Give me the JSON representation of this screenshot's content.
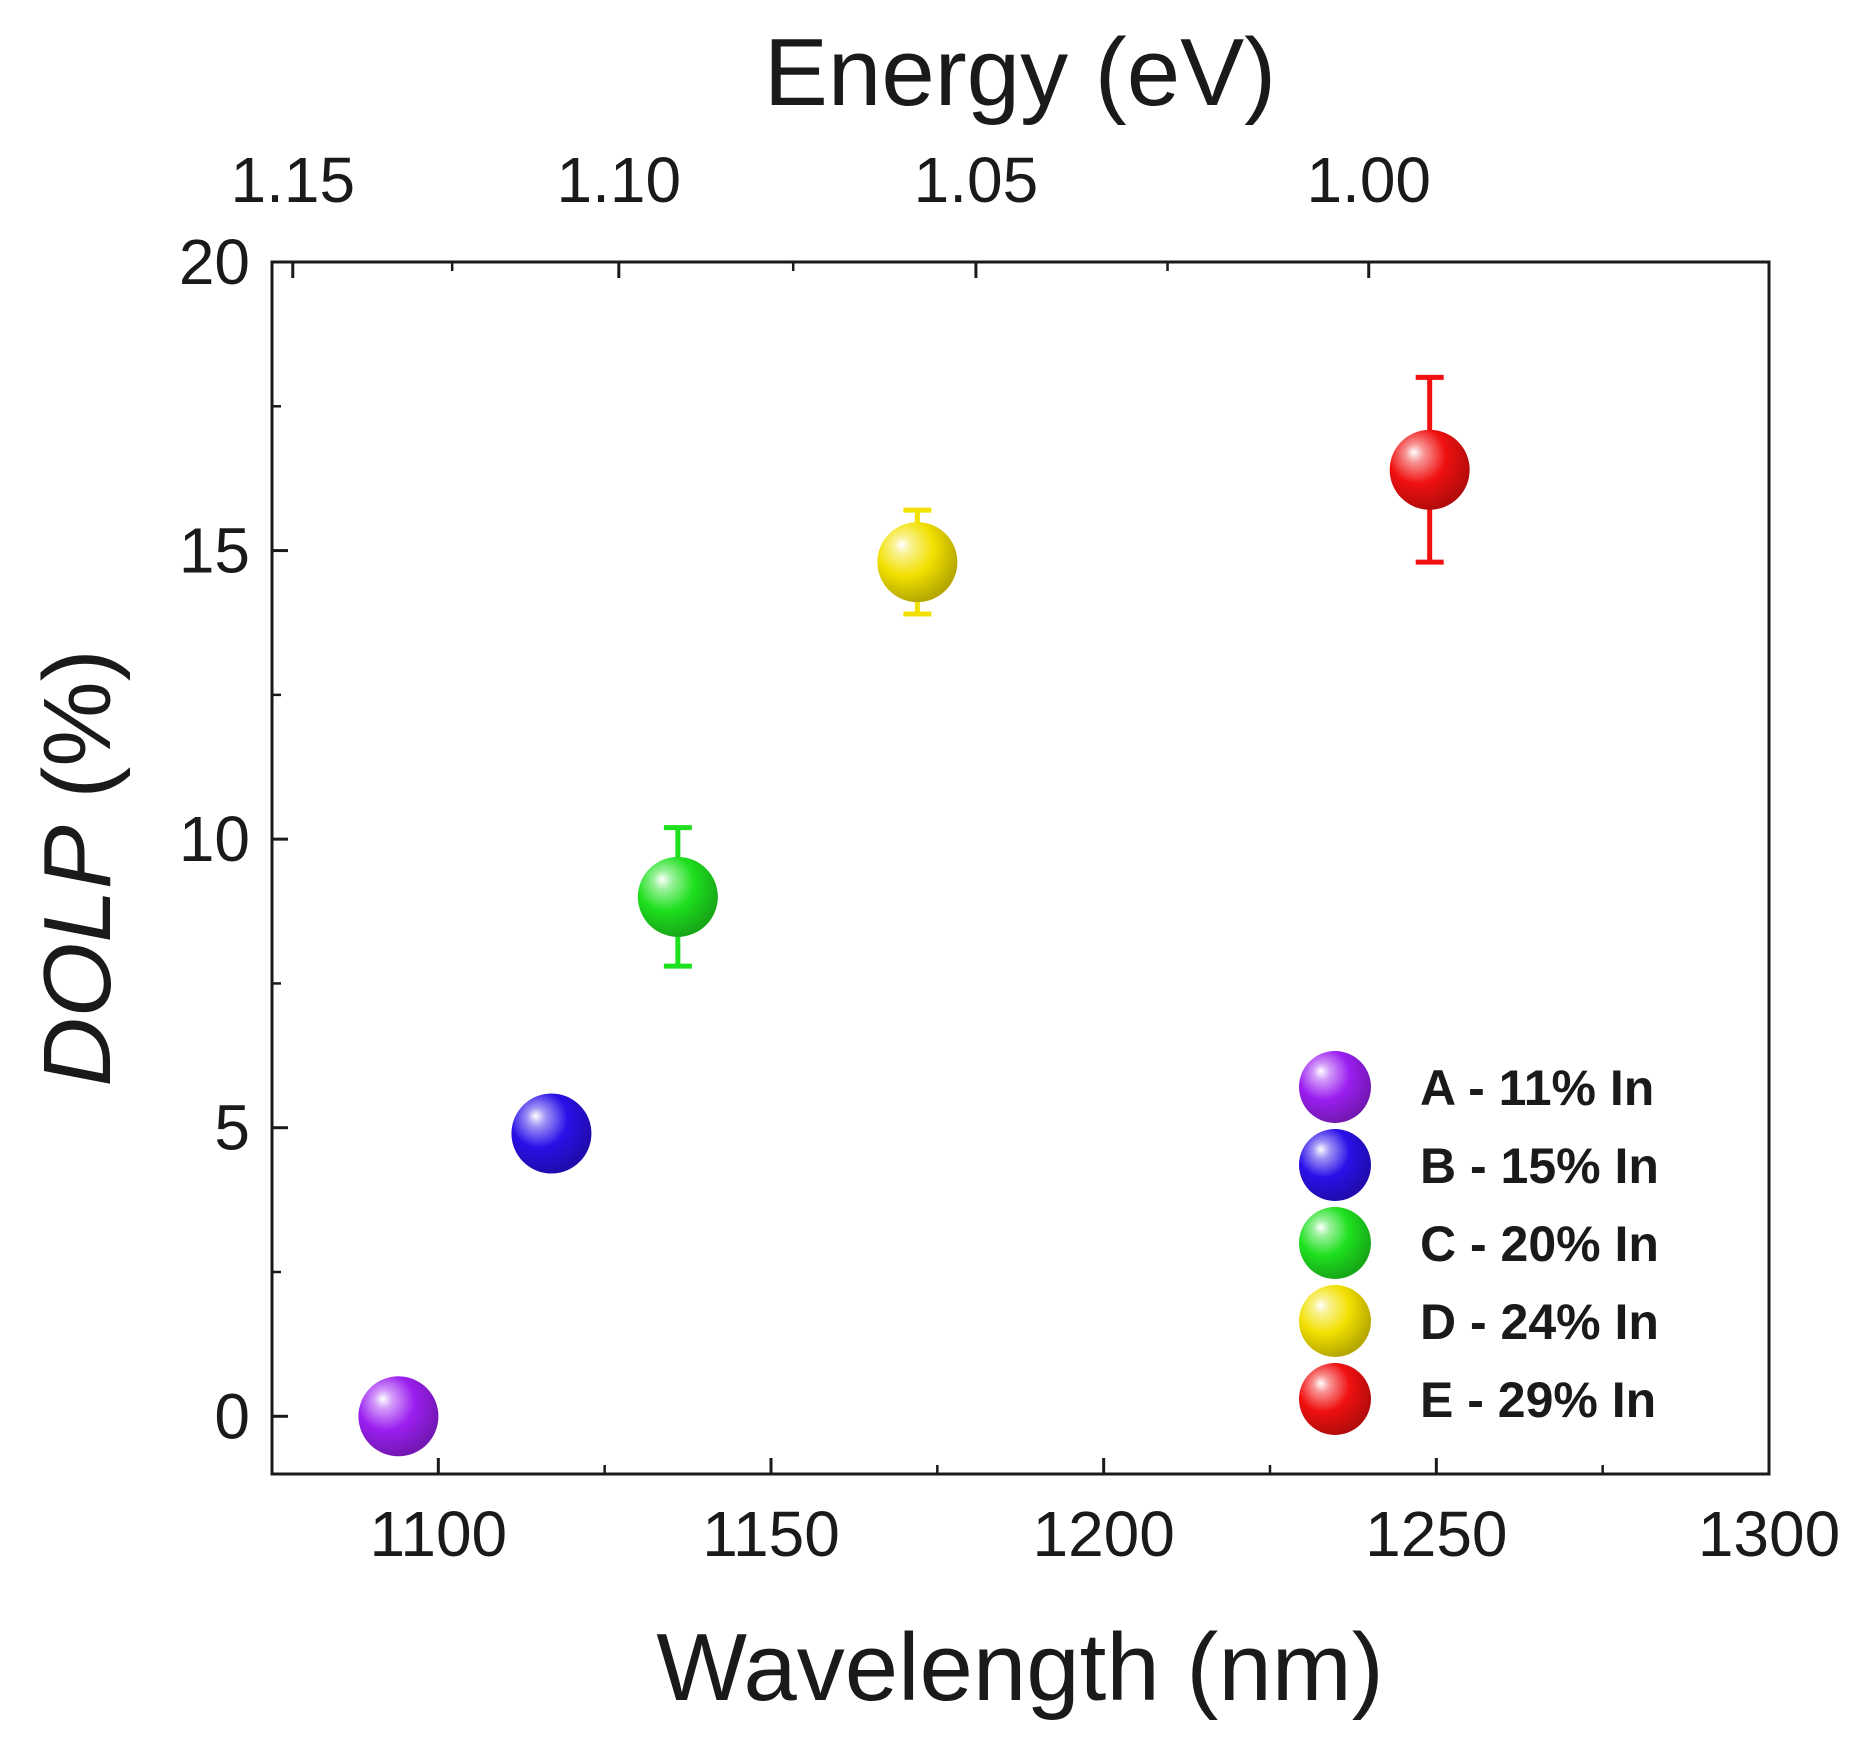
{
  "chart_data": {
    "type": "scatter",
    "title": "",
    "xlabel": "Wavelength (nm)",
    "ylabel_italic": "DOLP",
    "ylabel_rest": " (%)",
    "x2label": "Energy (eV)",
    "xlim": [
      1075,
      1300
    ],
    "ylim": [
      -1,
      20
    ],
    "x_ticks": [
      1100,
      1150,
      1200,
      1250,
      1300
    ],
    "y_ticks": [
      0,
      5,
      10,
      15,
      20
    ],
    "x2_ticks": [
      {
        "label": "1.15",
        "energy": 1.15
      },
      {
        "label": "1.10",
        "energy": 1.1
      },
      {
        "label": "1.05",
        "energy": 1.05
      },
      {
        "label": "1.00",
        "energy": 1.0
      }
    ],
    "legend_position": "bottom-right",
    "series": [
      {
        "name": "A - 11% In",
        "color": "#9b1ff0",
        "x": 1094,
        "y": 0.0,
        "err": 0.0
      },
      {
        "name": "B - 15% In",
        "color": "#2a10e8",
        "x": 1117,
        "y": 4.9,
        "err": 0.0
      },
      {
        "name": "C - 20% In",
        "color": "#1ee01e",
        "x": 1136,
        "y": 9.0,
        "err": 1.2
      },
      {
        "name": "D - 24% In",
        "color": "#f2e000",
        "x": 1172,
        "y": 14.8,
        "err": 0.9
      },
      {
        "name": "E - 29% In",
        "color": "#f01010",
        "x": 1249,
        "y": 16.4,
        "err": 1.6
      }
    ]
  }
}
